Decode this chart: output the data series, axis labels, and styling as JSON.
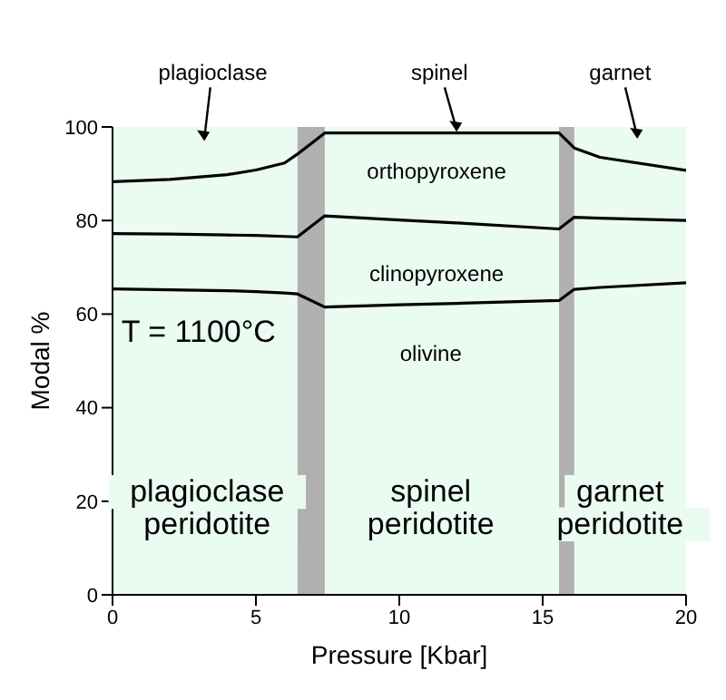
{
  "chart_data": {
    "type": "line",
    "xlabel": "Pressure [Kbar]",
    "ylabel": "Modal %",
    "x": [
      0,
      2,
      4,
      5,
      6,
      6.45,
      7.4,
      10,
      12,
      15.57,
      16.1,
      17,
      20
    ],
    "series": [
      {
        "color": "#000000",
        "values": [
          65.4,
          65.2,
          65,
          64.8,
          64.5,
          64.3,
          61.5,
          62,
          62.3,
          62.9,
          65.3,
          65.7,
          66.7
        ]
      },
      {
        "color": "#000000",
        "values": [
          77.2,
          77.1,
          76.9,
          76.8,
          76.6,
          76.5,
          81,
          80.1,
          79.5,
          78.2,
          80.7,
          80.5,
          80
        ]
      },
      {
        "color": "#000000",
        "values": [
          88.3,
          88.8,
          89.8,
          90.8,
          92.3,
          94.2,
          98.7,
          98.7,
          98.7,
          98.7,
          95.5,
          93.5,
          90.7
        ]
      }
    ],
    "xlim": [
      0,
      20
    ],
    "xticks": [
      0,
      5,
      10,
      15,
      20
    ],
    "ylim": [
      0,
      100
    ],
    "yticks": [
      0,
      20,
      40,
      60,
      80,
      100
    ],
    "grid": false,
    "marker": "none",
    "line_style": "solid",
    "bands": [
      {
        "axis": "x",
        "from": 6.45,
        "to": 7.4,
        "color": "#b0b0b0"
      },
      {
        "axis": "x",
        "from": 15.57,
        "to": 16.1,
        "color": "#b0b0b0"
      }
    ],
    "annotations": [
      "plagioclase",
      "spinel",
      "garnet",
      "orthopyroxene",
      "clinopyroxene",
      "olivine",
      "T = 1100°C",
      "plagioclase\nperidotite",
      "spinel\nperidotite",
      "garnet\nperidotite"
    ]
  }
}
